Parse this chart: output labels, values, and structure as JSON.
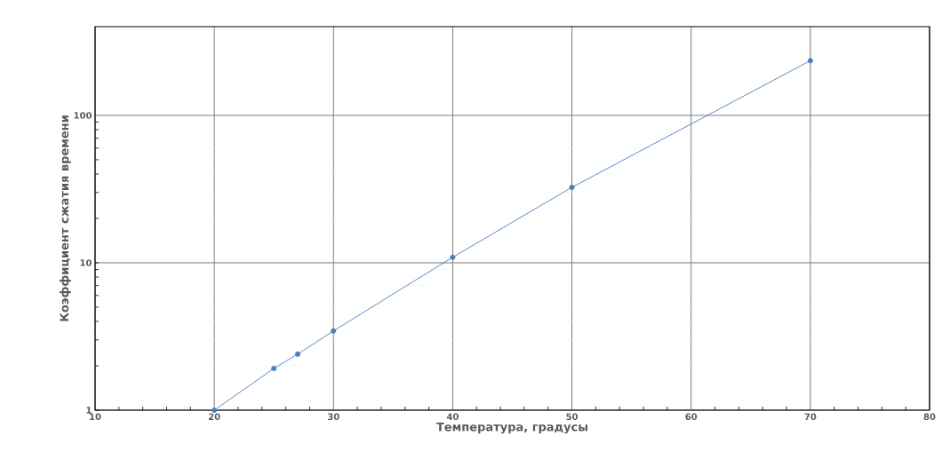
{
  "chart_data": {
    "type": "line",
    "xlabel": "Температура, градусы",
    "ylabel": "Коэффициент сжатия времени",
    "x": [
      20,
      25,
      27,
      30,
      40,
      50,
      70
    ],
    "series": [
      {
        "color": "#4a7ebb",
        "values": [
          1,
          1.92,
          2.4,
          3.45,
          10.9,
          32.5,
          235
        ]
      }
    ],
    "xlim": [
      10,
      80
    ],
    "xticks": [
      10,
      20,
      30,
      40,
      50,
      60,
      70,
      80
    ],
    "ylim": [
      1,
      400
    ],
    "yticks": [
      1,
      10,
      100
    ],
    "log": "y",
    "grid": true,
    "marker": "circle",
    "line_style": "solid"
  }
}
